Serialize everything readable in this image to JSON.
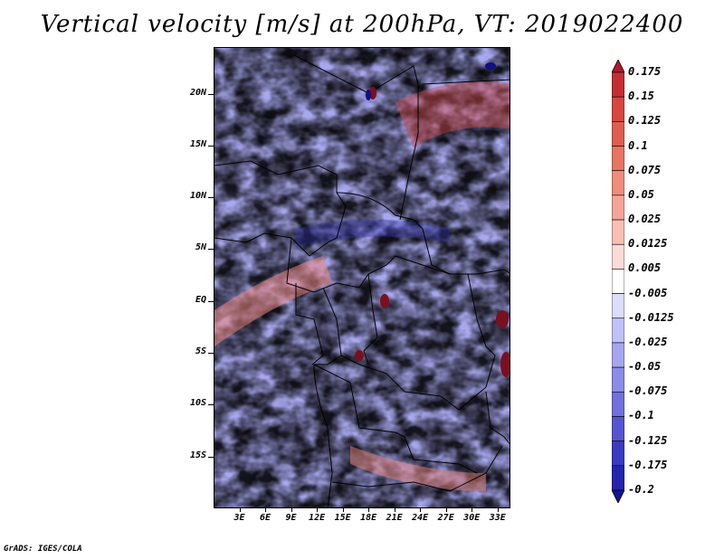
{
  "title": "Vertical velocity [m/s] at 200hPa, VT: 2019022400",
  "credit": "GrADS: IGES/COLA",
  "map": {
    "region": "Central Africa",
    "lat_ticks": [
      "20N",
      "15N",
      "10N",
      "5N",
      "EQ",
      "5S",
      "10S",
      "15S"
    ],
    "lat_values": [
      20,
      15,
      10,
      5,
      0,
      -5,
      -10,
      -15
    ],
    "lon_ticks": [
      "3E",
      "6E",
      "9E",
      "12E",
      "15E",
      "18E",
      "21E",
      "24E",
      "27E",
      "30E",
      "33E"
    ],
    "lon_values": [
      3,
      6,
      9,
      12,
      15,
      18,
      21,
      24,
      27,
      30,
      33
    ],
    "lat_range": [
      -20,
      24.5
    ],
    "lon_range": [
      0,
      34.5
    ]
  },
  "colorbar": {
    "labels": [
      "0.175",
      "0.15",
      "0.125",
      "0.1",
      "0.075",
      "0.05",
      "0.025",
      "0.0125",
      "0.005",
      "-0.005",
      "-0.0125",
      "-0.025",
      "-0.05",
      "-0.075",
      "-0.1",
      "-0.125",
      "-0.175",
      "-0.2"
    ],
    "colors": [
      "#b2182b",
      "#c62d32",
      "#d6473f",
      "#e05d4f",
      "#e87462",
      "#ef8c7b",
      "#f4a597",
      "#f8c0b5",
      "#fbdcd5",
      "#ffffff",
      "#dcdcfb",
      "#c1c1f6",
      "#a6a6f0",
      "#8b8bea",
      "#7070e0",
      "#5555d2",
      "#3a3ac2",
      "#2424ad",
      "#141496"
    ]
  }
}
